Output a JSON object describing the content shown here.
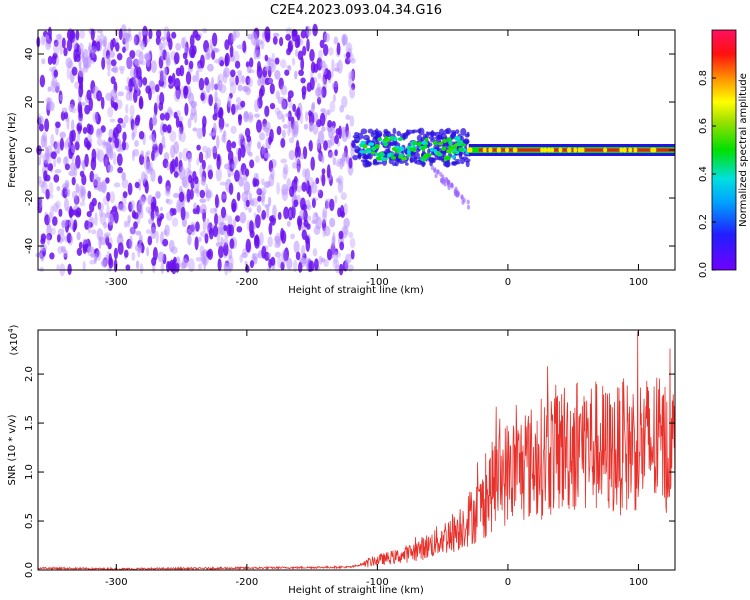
{
  "title": "C2E4.2023.093.04.34.G16",
  "colors": {
    "snr_line": "#e8302a",
    "axes": "#000000",
    "spectrogram_low": "#7a1cff",
    "spectrogram_high": "#ff2020"
  },
  "chart_data": [
    {
      "type": "heatmap",
      "panel": "spectrogram",
      "xlabel": "Height of straight line (km)",
      "ylabel": "Frequency (Hz)",
      "xlim": [
        -360,
        128
      ],
      "ylim": [
        -50,
        50
      ],
      "x_ticks": [
        -300,
        -200,
        -100,
        0,
        100
      ],
      "x_tick_labels": [
        "-300",
        "-200",
        "-100",
        "0",
        "100"
      ],
      "y_ticks": [
        -40,
        -20,
        0,
        20,
        40
      ],
      "y_tick_labels": [
        "-40",
        "-20",
        "0",
        "20",
        "40"
      ],
      "colorbar": {
        "label": "Normalized spectral amplitude",
        "range": [
          0,
          1
        ],
        "ticks": [
          0.0,
          0.2,
          0.4,
          0.6,
          0.8
        ],
        "tick_labels": [
          "0.0",
          "0.2",
          "0.4",
          "0.6",
          "0.8"
        ],
        "colormap": "rainbow (purple-blue-cyan-green-yellow-orange-red-pink)"
      },
      "regions": [
        {
          "x_range": [
            -360,
            -118
          ],
          "y_range": [
            -50,
            50
          ],
          "description": "broadband noise",
          "amplitude": 0.1
        },
        {
          "x_range": [
            -118,
            -30
          ],
          "y_range": [
            -8,
            10
          ],
          "description": "scattered signal near 0 Hz",
          "amplitude": 0.45
        },
        {
          "x_range": [
            -30,
            128
          ],
          "y_range": [
            -2,
            2
          ],
          "description": "coherent carrier at 0 Hz",
          "amplitude": 0.9
        }
      ]
    },
    {
      "type": "line",
      "panel": "snr",
      "xlabel": "Height of straight line (km)",
      "ylabel": "SNR (10 * v/v)",
      "y_scale_label": "(x10",
      "y_scale_exponent": "4",
      "y_scale_suffix": ")",
      "xlim": [
        -360,
        128
      ],
      "ylim": [
        0,
        2.45
      ],
      "x_ticks": [
        -300,
        -200,
        -100,
        0,
        100
      ],
      "x_tick_labels": [
        "-300",
        "-200",
        "-100",
        "0",
        "100"
      ],
      "y_ticks": [
        0.0,
        0.5,
        1.0,
        1.5,
        2.0
      ],
      "y_tick_labels": [
        "0.0",
        "0.5",
        "1.0",
        "1.5",
        "2.0"
      ],
      "series": [
        {
          "x": [
            -360,
            -300,
            -200,
            -120,
            -100,
            -80,
            -60,
            -40,
            -20,
            -10,
            0,
            20,
            40,
            60,
            80,
            100,
            128
          ],
          "y": [
            0.02,
            0.01,
            0.02,
            0.03,
            0.1,
            0.15,
            0.25,
            0.4,
            0.65,
            0.9,
            1.0,
            1.1,
            1.25,
            1.3,
            1.2,
            1.3,
            1.25
          ]
        }
      ]
    }
  ]
}
